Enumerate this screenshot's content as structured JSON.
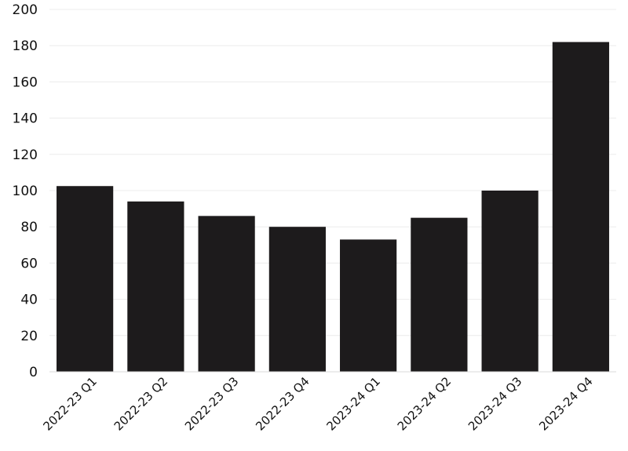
{
  "chart_data": {
    "type": "bar",
    "title": "",
    "xlabel": "",
    "ylabel": "",
    "categories": [
      "2022-23 Q1",
      "2022-23 Q2",
      "2022-23 Q3",
      "2022-23 Q4",
      "2023-24 Q1",
      "2023-24 Q2",
      "2023-24 Q3",
      "2023-24 Q4"
    ],
    "values": [
      102.5,
      94,
      86,
      80,
      73,
      85,
      100,
      182
    ],
    "ylim": [
      0,
      200
    ],
    "yticks": [
      0,
      20,
      40,
      60,
      80,
      100,
      120,
      140,
      160,
      180,
      200
    ],
    "grid": true,
    "legend": "none",
    "bar_color": "#1d1b1c"
  }
}
